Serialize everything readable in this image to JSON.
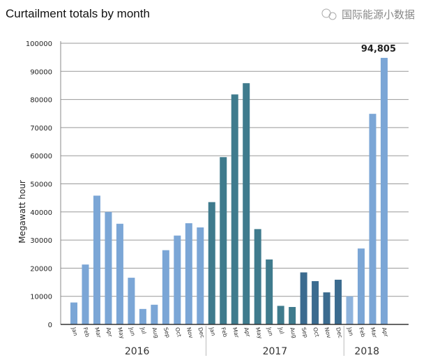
{
  "chart_data": {
    "type": "bar",
    "title": "Curtailment totals by month",
    "xlabel": "",
    "ylabel": "Megawatt hour",
    "ylim": [
      0,
      100000
    ],
    "yticks": [
      0,
      10000,
      20000,
      30000,
      40000,
      50000,
      60000,
      70000,
      80000,
      90000,
      100000
    ],
    "grid": true,
    "categories": [
      "Jan",
      "Feb",
      "Mar",
      "Apr",
      "May",
      "Jun",
      "Jul",
      "Aug",
      "Sep",
      "Oct",
      "Nov",
      "Dec",
      "Jan",
      "Feb",
      "Mar",
      "Apr",
      "May",
      "Jun",
      "Jul",
      "Aug",
      "Sep",
      "Oct",
      "Nov",
      "Dec",
      "Jan",
      "Feb",
      "Mar",
      "Apr"
    ],
    "years": [
      {
        "label": "2016",
        "count": 12
      },
      {
        "label": "2017",
        "count": 12
      },
      {
        "label": "2018",
        "count": 4
      }
    ],
    "values": [
      7800,
      21300,
      45800,
      40000,
      35800,
      16600,
      5500,
      7000,
      26400,
      31600,
      36000,
      34500,
      43500,
      59500,
      81800,
      85800,
      33900,
      23100,
      6600,
      6200,
      18500,
      15400,
      11400,
      15900,
      10000,
      27000,
      74900,
      94805
    ],
    "bar_colors": [
      "#7ba6d6",
      "#7ba6d6",
      "#7ba6d6",
      "#7ba6d6",
      "#7ba6d6",
      "#7ba6d6",
      "#7ba6d6",
      "#7ba6d6",
      "#7ba6d6",
      "#7ba6d6",
      "#7ba6d6",
      "#7ba6d6",
      "#3f7b8d",
      "#3f7b8d",
      "#3f7b8d",
      "#3f7b8d",
      "#3f7b8d",
      "#3f7b8d",
      "#3f7b8d",
      "#3f7b8d",
      "#3b6b8f",
      "#3b6b8f",
      "#3b6b8f",
      "#3b6b8f",
      "#8fb3dc",
      "#7ba6d6",
      "#7ba6d6",
      "#7ba6d6"
    ],
    "annotations": [
      {
        "index": 27,
        "text": "94,805"
      }
    ]
  },
  "watermark": "国际能源小数据"
}
